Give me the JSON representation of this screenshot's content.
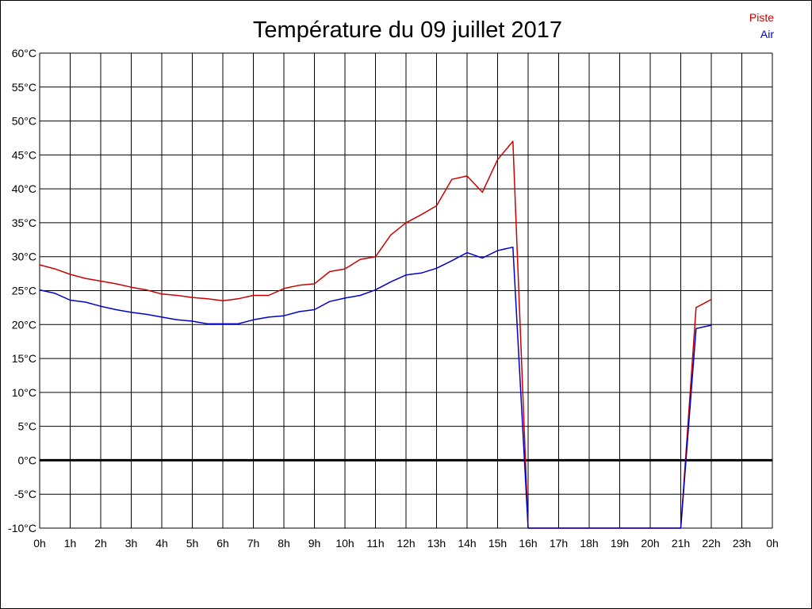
{
  "chart_data": {
    "type": "line",
    "title": "Température du 09 juillet 2017",
    "xlabel": "",
    "ylabel": "",
    "x_ticks": [
      "0h",
      "1h",
      "2h",
      "3h",
      "4h",
      "5h",
      "6h",
      "7h",
      "8h",
      "9h",
      "10h",
      "11h",
      "12h",
      "13h",
      "14h",
      "15h",
      "16h",
      "17h",
      "18h",
      "19h",
      "20h",
      "21h",
      "22h",
      "23h",
      "0h"
    ],
    "xlim": [
      0,
      24
    ],
    "y_ticks": [
      "60°C",
      "55°C",
      "50°C",
      "45°C",
      "40°C",
      "35°C",
      "30°C",
      "25°C",
      "20°C",
      "15°C",
      "10°C",
      "5°C",
      "0°C",
      "-5°C",
      "-10°C"
    ],
    "ylim": [
      -10,
      60
    ],
    "y_step": 5,
    "grid": true,
    "zero_line": true,
    "legend_position": "top-right",
    "x": [
      0,
      0.5,
      1,
      1.5,
      2,
      2.5,
      3,
      3.5,
      4,
      4.5,
      5,
      5.5,
      6,
      6.5,
      7,
      7.5,
      8,
      8.5,
      9,
      9.5,
      10,
      10.5,
      11,
      11.5,
      12,
      12.5,
      13,
      13.5,
      14,
      14.5,
      15,
      15.5,
      16,
      16.5,
      17,
      17.5,
      18,
      18.5,
      19,
      19.5,
      20,
      20.5,
      21,
      21.5,
      22
    ],
    "series": [
      {
        "name": "Piste",
        "color": "#cc0000",
        "values": [
          28.8,
          28.2,
          27.4,
          26.8,
          26.4,
          26.0,
          25.5,
          25.1,
          24.5,
          24.3,
          24.0,
          23.8,
          23.5,
          23.8,
          24.3,
          24.3,
          25.3,
          25.8,
          26.0,
          27.8,
          28.2,
          29.6,
          30.0,
          33.2,
          35.0,
          36.2,
          37.5,
          41.4,
          41.9,
          39.5,
          44.3,
          47.0,
          -10,
          -10,
          -10,
          -10,
          -10,
          -10,
          -10,
          -10,
          -10,
          -10,
          -10,
          22.5,
          23.7
        ]
      },
      {
        "name": "Air",
        "color": "#0000cc",
        "values": [
          25.1,
          24.6,
          23.6,
          23.3,
          22.7,
          22.2,
          21.8,
          21.5,
          21.1,
          20.7,
          20.5,
          20.1,
          20.1,
          20.1,
          20.7,
          21.1,
          21.3,
          21.9,
          22.2,
          23.4,
          23.9,
          24.3,
          25.1,
          26.3,
          27.3,
          27.6,
          28.3,
          29.4,
          30.6,
          29.8,
          30.9,
          31.4,
          -10,
          -10,
          -10,
          -10,
          -10,
          -10,
          -10,
          -10,
          -10,
          -10,
          -10,
          19.4,
          19.9
        ]
      }
    ]
  }
}
